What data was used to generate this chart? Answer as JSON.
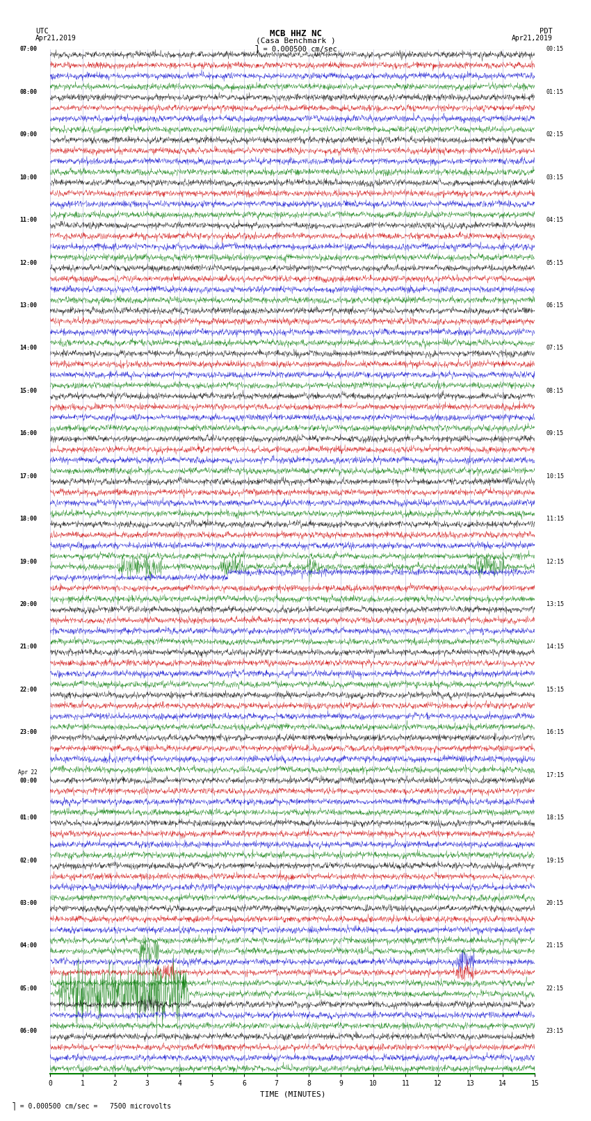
{
  "title_line1": "MCB HHZ NC",
  "title_line2": "(Casa Benchmark )",
  "scale_text": "= 0.000500 cm/sec",
  "footer_text": "= 0.000500 cm/sec =   7500 microvolts",
  "utc_label": "UTC",
  "utc_date": "Apr21,2019",
  "pdt_label": "PDT",
  "pdt_date": "Apr21,2019",
  "xlabel": "TIME (MINUTES)",
  "xlim": [
    0,
    15
  ],
  "xticks": [
    0,
    1,
    2,
    3,
    4,
    5,
    6,
    7,
    8,
    9,
    10,
    11,
    12,
    13,
    14,
    15
  ],
  "background_color": "#ffffff",
  "trace_colors": [
    "#000000",
    "#cc0000",
    "#0000cc",
    "#007700"
  ],
  "n_rows": 96,
  "utc_hour_labels": [
    [
      "07:00",
      0
    ],
    [
      "08:00",
      4
    ],
    [
      "09:00",
      8
    ],
    [
      "10:00",
      12
    ],
    [
      "11:00",
      16
    ],
    [
      "12:00",
      20
    ],
    [
      "13:00",
      24
    ],
    [
      "14:00",
      28
    ],
    [
      "15:00",
      32
    ],
    [
      "16:00",
      36
    ],
    [
      "17:00",
      40
    ],
    [
      "18:00",
      44
    ],
    [
      "19:00",
      48
    ],
    [
      "20:00",
      52
    ],
    [
      "21:00",
      56
    ],
    [
      "22:00",
      60
    ],
    [
      "23:00",
      64
    ],
    [
      "Apr 22\n00:00",
      68
    ],
    [
      "01:00",
      72
    ],
    [
      "02:00",
      76
    ],
    [
      "03:00",
      80
    ],
    [
      "04:00",
      84
    ],
    [
      "05:00",
      88
    ],
    [
      "06:00",
      92
    ]
  ],
  "pdt_hour_labels": [
    [
      "00:15",
      0
    ],
    [
      "01:15",
      4
    ],
    [
      "02:15",
      8
    ],
    [
      "03:15",
      12
    ],
    [
      "04:15",
      16
    ],
    [
      "05:15",
      20
    ],
    [
      "06:15",
      24
    ],
    [
      "07:15",
      28
    ],
    [
      "08:15",
      32
    ],
    [
      "09:15",
      36
    ],
    [
      "10:15",
      40
    ],
    [
      "11:15",
      44
    ],
    [
      "12:15",
      48
    ],
    [
      "13:15",
      52
    ],
    [
      "14:15",
      56
    ],
    [
      "15:15",
      60
    ],
    [
      "16:15",
      64
    ],
    [
      "17:15",
      68
    ],
    [
      "18:15",
      72
    ],
    [
      "19:15",
      76
    ],
    [
      "20:15",
      80
    ],
    [
      "21:15",
      84
    ],
    [
      "22:15",
      88
    ],
    [
      "23:15",
      92
    ]
  ],
  "noise_amp": 0.28,
  "grid_color": "#7777bb",
  "grid_alpha": 0.6,
  "grid_lw": 0.4,
  "special_events": [
    {
      "row": 48,
      "color": "#007700",
      "bursts": [
        2.5,
        3.2,
        5.6,
        8.1,
        13.5
      ],
      "amp": 1.5
    },
    {
      "row": 49,
      "color": "#0000cc",
      "step": 5.5,
      "amp": 1.2
    },
    {
      "row": 50,
      "color": "#cc0000",
      "amp": 0.6
    },
    {
      "row": 84,
      "color": "#007700",
      "bursts": [
        3.0
      ],
      "amp": 2.0
    },
    {
      "row": 85,
      "color": "#0000cc",
      "bursts": [
        12.8
      ],
      "amp": 1.5
    },
    {
      "row": 86,
      "color": "#cc0000",
      "bursts": [
        3.5,
        12.8
      ],
      "amp": 1.2
    },
    {
      "row": 88,
      "color": "#007700",
      "bursts": [
        0.5,
        1.0,
        1.5,
        2.0,
        2.5,
        3.0,
        3.5,
        4.0
      ],
      "amp": 4.0
    },
    {
      "row": 89,
      "color": "#000000",
      "bursts": [
        3.0
      ],
      "amp": 1.0
    }
  ]
}
